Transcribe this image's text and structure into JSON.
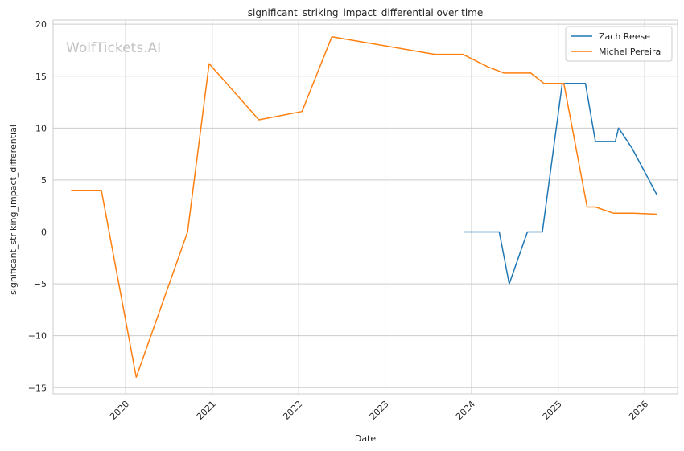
{
  "chart_data": {
    "type": "line",
    "title": "significant_striking_impact_differential over time",
    "xlabel": "Date",
    "ylabel": "significant_striking_impact_differential",
    "watermark": "WolfTickets.AI",
    "x_axis": "date",
    "xlim": [
      "2019-03-01",
      "2026-05-20"
    ],
    "ylim": [
      -15.6,
      20.4
    ],
    "x_ticks": [
      "2020",
      "2021",
      "2022",
      "2023",
      "2024",
      "2025",
      "2026"
    ],
    "y_ticks": [
      20,
      15,
      10,
      5,
      0,
      -5,
      -10,
      -15
    ],
    "y_tick_labels": [
      "20",
      "15",
      "10",
      "5",
      "0",
      "−5",
      "−10",
      "−15"
    ],
    "grid": true,
    "legend_position": "top-right",
    "series": [
      {
        "name": "Zach Reese",
        "color": "#1f77b4",
        "points": [
          {
            "x": "2023-12-02",
            "y": 0
          },
          {
            "x": "2024-04-27",
            "y": 0
          },
          {
            "x": "2024-06-08",
            "y": -5
          },
          {
            "x": "2024-08-24",
            "y": 0
          },
          {
            "x": "2024-10-26",
            "y": 0
          },
          {
            "x": "2025-01-18",
            "y": 14.3
          },
          {
            "x": "2025-04-26",
            "y": 14.3
          },
          {
            "x": "2025-06-07",
            "y": 8.7
          },
          {
            "x": "2025-08-30",
            "y": 8.7
          },
          {
            "x": "2025-09-13",
            "y": 10
          },
          {
            "x": "2025-11-08",
            "y": 8.1
          },
          {
            "x": "2026-02-21",
            "y": 3.6
          }
        ]
      },
      {
        "name": "Michel Pereira",
        "color": "#ff7f0e",
        "points": [
          {
            "x": "2019-05-18",
            "y": 4
          },
          {
            "x": "2019-09-21",
            "y": 4
          },
          {
            "x": "2020-02-15",
            "y": -14
          },
          {
            "x": "2020-09-19",
            "y": 0
          },
          {
            "x": "2020-12-19",
            "y": 16.2
          },
          {
            "x": "2021-07-17",
            "y": 10.8
          },
          {
            "x": "2022-01-15",
            "y": 11.6
          },
          {
            "x": "2022-05-21",
            "y": 18.8
          },
          {
            "x": "2023-07-29",
            "y": 17.1
          },
          {
            "x": "2023-11-25",
            "y": 17.1
          },
          {
            "x": "2024-03-09",
            "y": 15.9
          },
          {
            "x": "2024-05-18",
            "y": 15.3
          },
          {
            "x": "2024-09-07",
            "y": 15.3
          },
          {
            "x": "2024-11-02",
            "y": 14.3
          },
          {
            "x": "2025-01-25",
            "y": 14.3
          },
          {
            "x": "2025-05-03",
            "y": 2.4
          },
          {
            "x": "2025-06-07",
            "y": 2.4
          },
          {
            "x": "2025-08-23",
            "y": 1.8
          },
          {
            "x": "2025-11-15",
            "y": 1.8
          },
          {
            "x": "2026-02-21",
            "y": 1.7
          }
        ]
      }
    ]
  }
}
